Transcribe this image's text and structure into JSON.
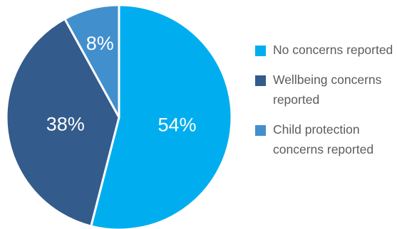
{
  "chart_data": {
    "type": "pie",
    "slices": [
      {
        "label": "No concerns reported",
        "value": 54,
        "display": "54%",
        "color": "#00aeef"
      },
      {
        "label": "Wellbeing concerns reported",
        "value": 38,
        "display": "38%",
        "color": "#335b8c"
      },
      {
        "label": "Child protection concerns reported",
        "value": 8,
        "display": "8%",
        "color": "#428fce"
      }
    ],
    "start_angle_deg": 0,
    "direction": "clockwise",
    "legend_position": "right"
  },
  "legend": {
    "items": [
      {
        "label": "No concerns reported",
        "color": "#00aeef"
      },
      {
        "label": "Wellbeing concerns reported",
        "color": "#335b8c"
      },
      {
        "label": "Child protection concerns reported",
        "color": "#428fce"
      }
    ]
  }
}
